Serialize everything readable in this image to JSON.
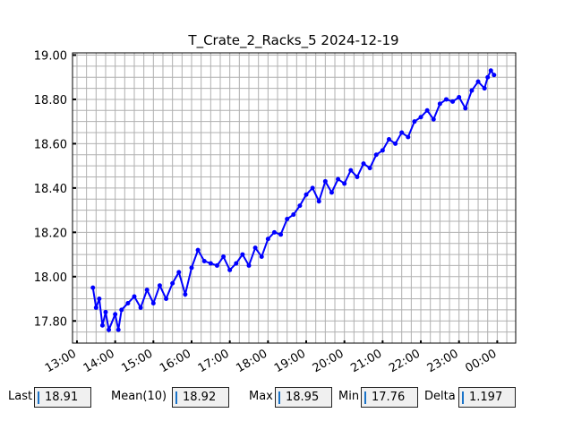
{
  "chart_data": {
    "type": "line",
    "title": "T_Crate_2_Racks_5 2024-12-19",
    "xlabel": "",
    "ylabel": "",
    "xlim": [
      "12:53",
      "00:29"
    ],
    "ylim": [
      17.7,
      19.01
    ],
    "grid": true,
    "color": "#0000ff",
    "marker": "circle",
    "x_tick_labels": [
      "13:00",
      "14:00",
      "15:00",
      "16:00",
      "17:00",
      "18:00",
      "19:00",
      "20:00",
      "21:00",
      "22:00",
      "23:00",
      "00:00"
    ],
    "y_tick_labels": [
      "17.80",
      "18.00",
      "18.20",
      "18.40",
      "18.60",
      "18.80",
      "19.00"
    ],
    "y_ticks": [
      17.8,
      18.0,
      18.2,
      18.4,
      18.6,
      18.8,
      19.0
    ],
    "x": [
      "13:25",
      "13:30",
      "13:35",
      "13:40",
      "13:45",
      "13:50",
      "14:00",
      "14:05",
      "14:10",
      "14:20",
      "14:30",
      "14:40",
      "14:50",
      "15:00",
      "15:10",
      "15:20",
      "15:30",
      "15:40",
      "15:50",
      "16:00",
      "16:10",
      "16:20",
      "16:30",
      "16:40",
      "16:50",
      "17:00",
      "17:10",
      "17:20",
      "17:30",
      "17:40",
      "17:50",
      "18:00",
      "18:10",
      "18:20",
      "18:30",
      "18:40",
      "18:50",
      "19:00",
      "19:10",
      "19:20",
      "19:30",
      "19:40",
      "19:50",
      "20:00",
      "20:10",
      "20:20",
      "20:30",
      "20:40",
      "20:50",
      "21:00",
      "21:10",
      "21:20",
      "21:30",
      "21:40",
      "21:50",
      "22:00",
      "22:10",
      "22:20",
      "22:30",
      "22:40",
      "22:50",
      "23:00",
      "23:10",
      "23:20",
      "23:30",
      "23:40",
      "23:45",
      "23:50",
      "23:55"
    ],
    "y": [
      17.95,
      17.86,
      17.9,
      17.78,
      17.84,
      17.76,
      17.83,
      17.76,
      17.85,
      17.88,
      17.91,
      17.86,
      17.94,
      17.88,
      17.96,
      17.9,
      17.97,
      18.02,
      17.92,
      18.04,
      18.12,
      18.07,
      18.06,
      18.05,
      18.09,
      18.03,
      18.06,
      18.1,
      18.05,
      18.13,
      18.09,
      18.17,
      18.2,
      18.19,
      18.26,
      18.28,
      18.32,
      18.37,
      18.4,
      18.34,
      18.43,
      18.38,
      18.44,
      18.42,
      18.48,
      18.45,
      18.51,
      18.49,
      18.55,
      18.57,
      18.62,
      18.6,
      18.65,
      18.63,
      18.7,
      18.72,
      18.75,
      18.71,
      18.78,
      18.8,
      18.79,
      18.81,
      18.76,
      18.84,
      18.88,
      18.85,
      18.9,
      18.93,
      18.91
    ]
  },
  "stats": {
    "last_label": "Last",
    "last_value": "18.91",
    "mean_label": "Mean(10)",
    "mean_value": "18.92",
    "max_label": "Max",
    "max_value": "18.95",
    "min_label": "Min",
    "min_value": "17.76",
    "delta_label": "Delta",
    "delta_value": "1.197"
  }
}
